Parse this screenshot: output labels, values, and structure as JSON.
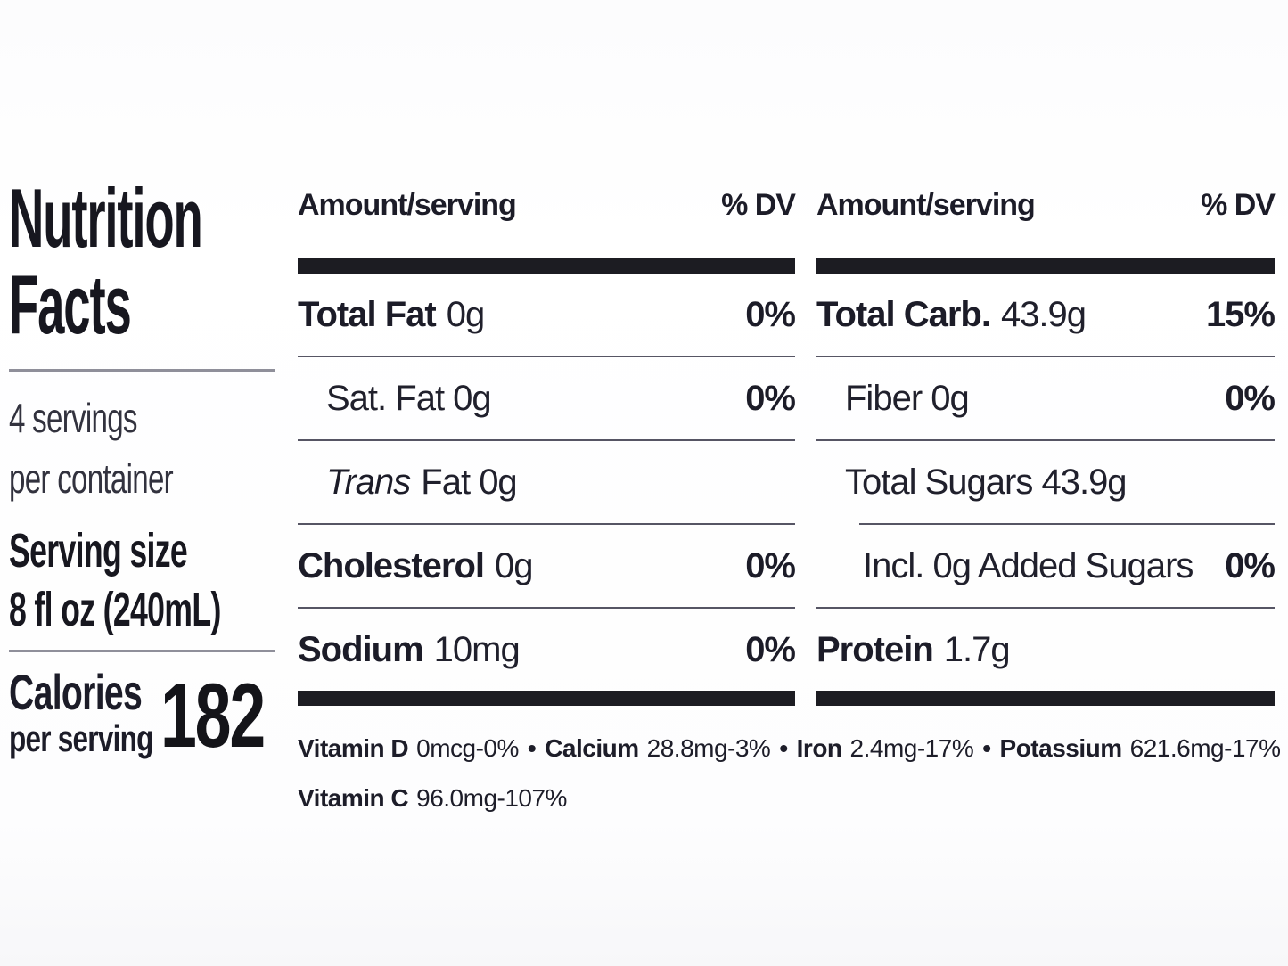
{
  "left": {
    "title_line1": "Nutrition",
    "title_line2": "Facts",
    "servings_line1": "4 servings",
    "servings_line2": "per container",
    "serving_size_label": "Serving size",
    "serving_size_value": "8 fl oz (240mL)",
    "calories_label": "Calories",
    "calories_sub": "per serving",
    "calories_value": "182"
  },
  "columns": [
    {
      "header": {
        "amount": "Amount/serving",
        "dv": "% DV"
      },
      "rows": [
        {
          "bold": "Total Fat",
          "plain": "0g",
          "dv": "0%"
        },
        {
          "plain": "Sat. Fat 0g",
          "dv": "0%"
        },
        {
          "italic": "Trans",
          "plain": "Fat 0g"
        },
        {
          "bold": "Cholesterol",
          "plain": "0g",
          "dv": "0%"
        },
        {
          "bold": "Sodium",
          "plain": "10mg",
          "dv": "0%"
        }
      ]
    },
    {
      "header": {
        "amount": "Amount/serving",
        "dv": "% DV"
      },
      "rows": [
        {
          "bold": "Total Carb.",
          "plain": "43.9g",
          "dv": "15%"
        },
        {
          "plain": "Fiber 0g",
          "dv": "0%"
        },
        {
          "plain": "Total Sugars 43.9g"
        },
        {
          "plain": "Incl. 0g Added Sugars",
          "dv": "0%"
        },
        {
          "bold": "Protein",
          "plain": "1.7g"
        }
      ]
    }
  ],
  "micronutrients": {
    "separator": "•",
    "line1": [
      {
        "name": "Vitamin D",
        "value": "0mcg-0%"
      },
      {
        "name": "Calcium",
        "value": "28.8mg-3%"
      },
      {
        "name": "Iron",
        "value": "2.4mg-17%"
      },
      {
        "name": "Potassium",
        "value": "621.6mg-17%"
      }
    ],
    "line2": [
      {
        "name": "Vitamin C",
        "value": "96.0mg-107%"
      }
    ]
  },
  "colors": {
    "text": "#1c1c28",
    "thick_bar": "#1c1c22",
    "thin_rule": "#565564",
    "light_rule": "#8f8f9a",
    "background": "#ffffff"
  }
}
